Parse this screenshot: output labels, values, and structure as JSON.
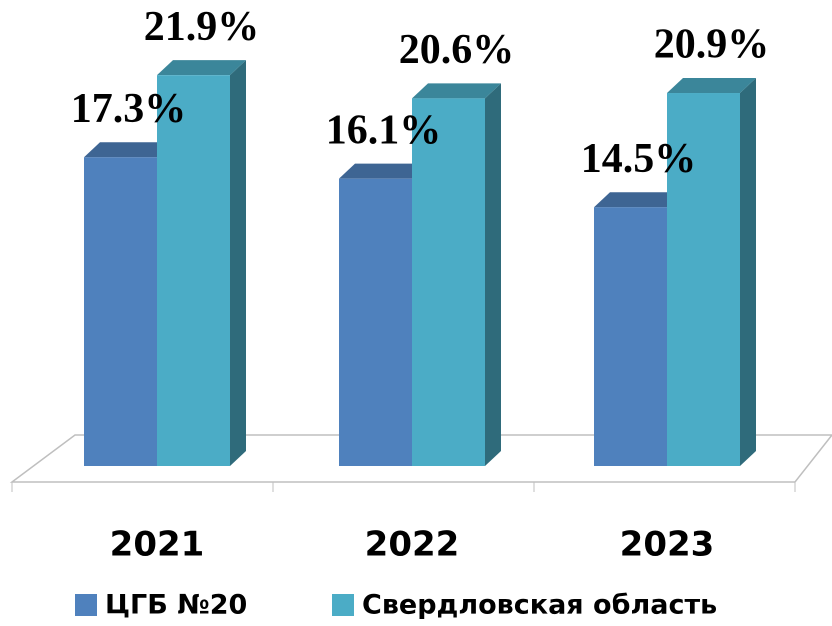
{
  "chart_data": {
    "type": "bar3d",
    "categories": [
      "2021",
      "2022",
      "2023"
    ],
    "series": [
      {
        "name": "ЦГБ №20",
        "color": "#4f81bd",
        "values": [
          17.3,
          16.1,
          14.5
        ],
        "value_labels": [
          "17.3%",
          "16.1%",
          "14.5%"
        ]
      },
      {
        "name": "Свердловская область",
        "color": "#4bacc6",
        "values": [
          21.9,
          20.6,
          20.9
        ],
        "value_labels": [
          "21.9%",
          "20.6%",
          "20.9%"
        ]
      }
    ],
    "ylim": [
      0,
      26
    ]
  }
}
